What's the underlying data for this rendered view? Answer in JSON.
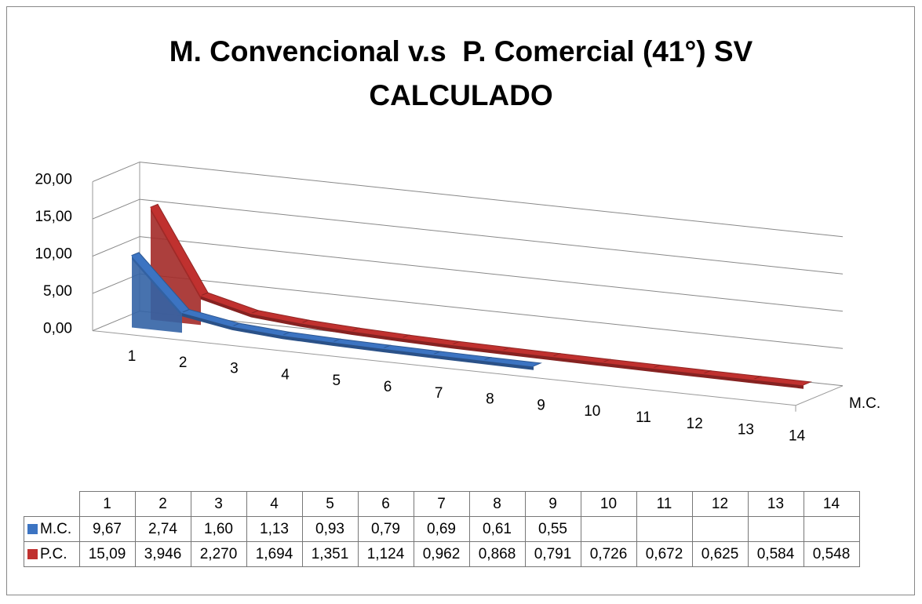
{
  "chart_data": {
    "type": "line3d",
    "title": "M. Convencional v.s  P. Comercial (41°) SV CALCULADO",
    "categories": [
      "1",
      "2",
      "3",
      "4",
      "5",
      "6",
      "7",
      "8",
      "9",
      "10",
      "11",
      "12",
      "13",
      "14"
    ],
    "series": [
      {
        "name": "M.C.",
        "color": "#3c74c2",
        "values": [
          9.67,
          2.74,
          1.6,
          1.13,
          0.93,
          0.79,
          0.69,
          0.61,
          0.55,
          null,
          null,
          null,
          null,
          null
        ],
        "value_labels": [
          "9,67",
          "2,74",
          "1,60",
          "1,13",
          "0,93",
          "0,79",
          "0,69",
          "0,61",
          "0,55",
          null,
          null,
          null,
          null,
          null
        ]
      },
      {
        "name": "P.C.",
        "color": "#c0312f",
        "values": [
          15.09,
          3.946,
          2.27,
          1.694,
          1.351,
          1.124,
          0.962,
          0.868,
          0.791,
          0.726,
          0.672,
          0.625,
          0.584,
          0.548
        ],
        "value_labels": [
          "15,09",
          "3,946",
          "2,270",
          "1,694",
          "1,351",
          "1,124",
          "0,962",
          "0,868",
          "0,791",
          "0,726",
          "0,672",
          "0,625",
          "0,584",
          "0,548"
        ]
      }
    ],
    "ylim": [
      0,
      20
    ],
    "yticks": [
      {
        "value": 0,
        "label": "0,00"
      },
      {
        "value": 5,
        "label": "5,00"
      },
      {
        "value": 10,
        "label": "10,00"
      },
      {
        "value": 15,
        "label": "15,00"
      },
      {
        "value": 20,
        "label": "20,00"
      }
    ],
    "grid": true,
    "data_table": true
  }
}
